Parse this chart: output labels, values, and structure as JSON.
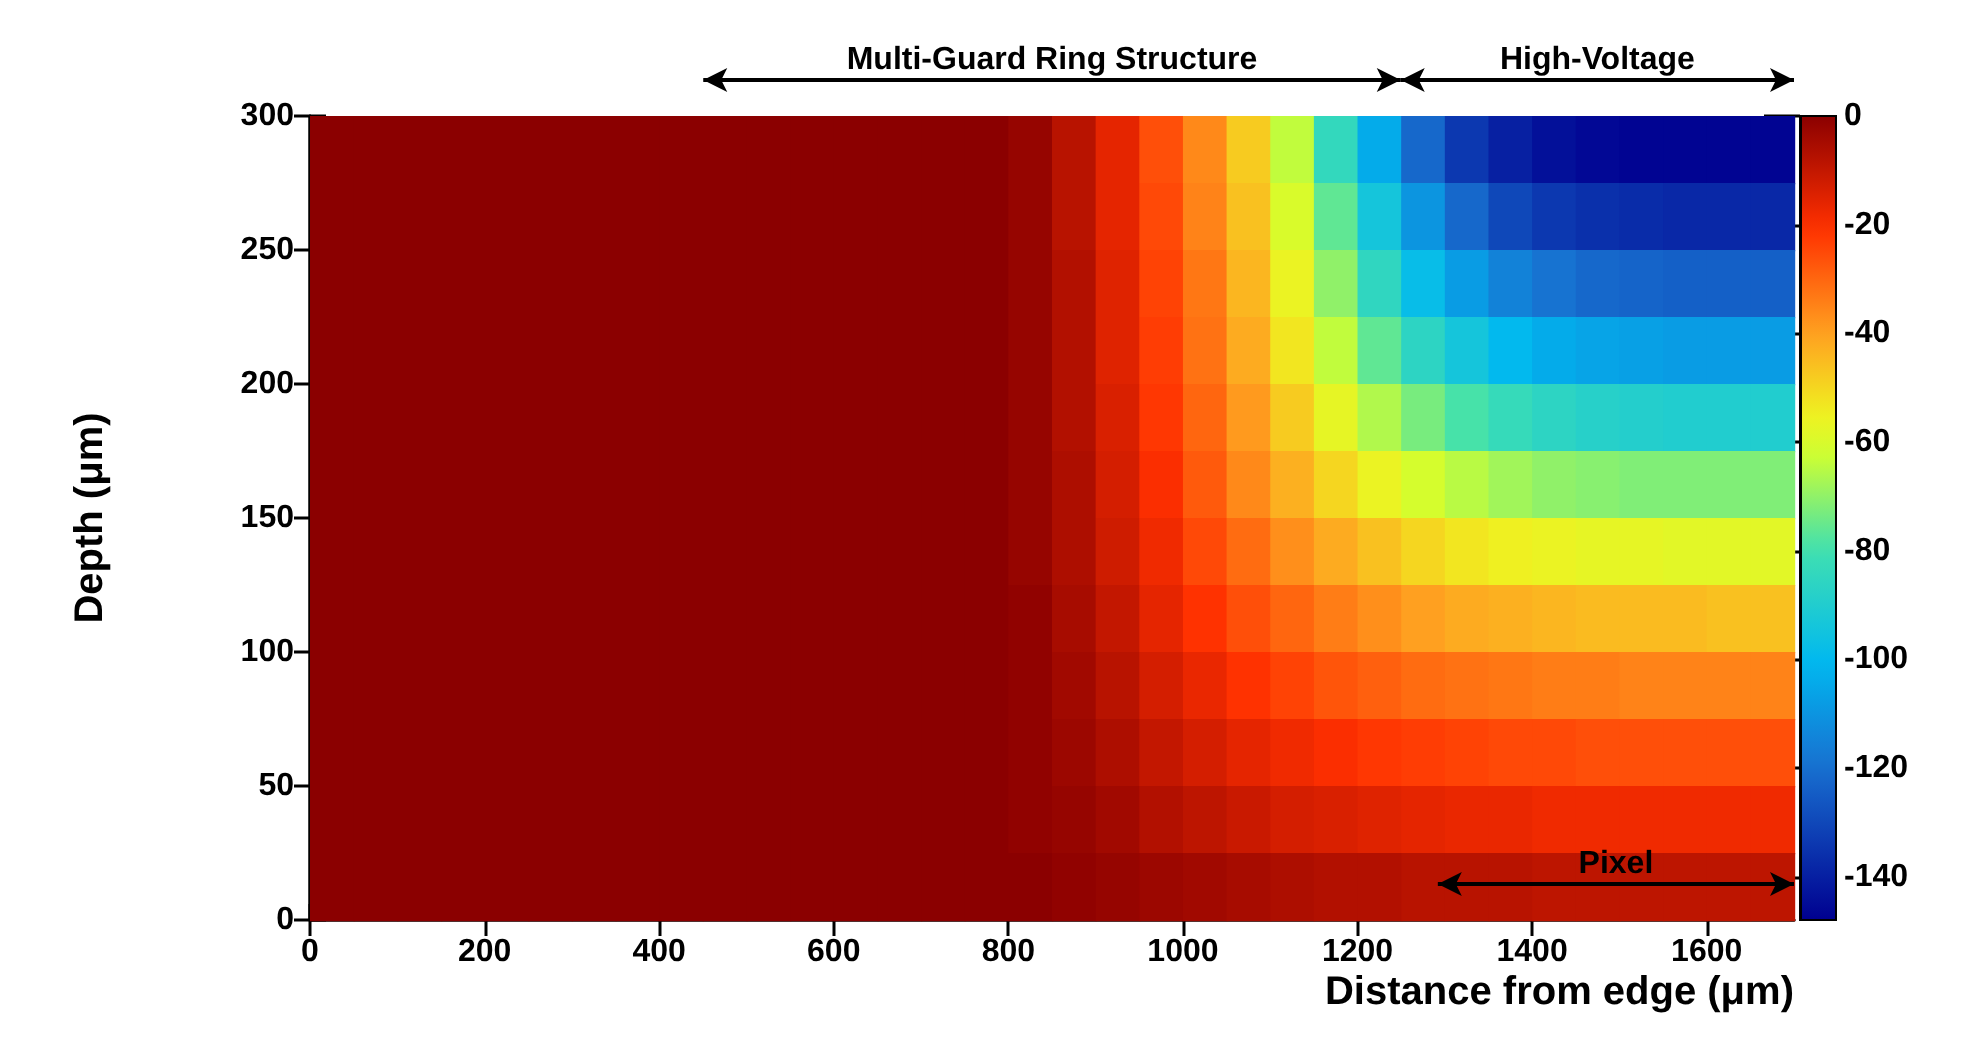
{
  "chart_data": {
    "type": "heatmap",
    "xlabel": "Distance from edge (μm)",
    "ylabel": "Depth (μm)",
    "xlim": [
      0,
      1700
    ],
    "xticks": [
      0,
      200,
      400,
      600,
      800,
      1000,
      1200,
      1400,
      1600
    ],
    "ylim": [
      0,
      300
    ],
    "yticks": [
      0,
      50,
      100,
      150,
      200,
      250,
      300
    ],
    "clim": [
      -148,
      0
    ],
    "cticks": [
      0,
      -20,
      -40,
      -60,
      -80,
      -100,
      -120,
      -140
    ],
    "x": [
      25,
      75,
      125,
      175,
      225,
      275,
      325,
      375,
      425,
      475,
      525,
      575,
      625,
      675,
      725,
      775,
      825,
      875,
      925,
      975,
      1025,
      1075,
      1125,
      1175,
      1225,
      1275,
      1325,
      1375,
      1425,
      1475,
      1525,
      1575,
      1625,
      1675
    ],
    "y": [
      287.5,
      262.5,
      237.5,
      212.5,
      187.5,
      162.5,
      137.5,
      112.5,
      87.5,
      62.5,
      37.5,
      12.5
    ],
    "cells": [
      [
        0,
        0,
        0,
        0,
        0,
        0,
        0,
        0,
        0,
        0,
        0,
        0,
        0,
        0,
        0,
        0,
        -2,
        -8,
        -16,
        -26,
        -36,
        -48,
        -64,
        -84,
        -104,
        -122,
        -134,
        -140,
        -144,
        -146,
        -147,
        -147,
        -147,
        -147
      ],
      [
        0,
        0,
        0,
        0,
        0,
        0,
        0,
        0,
        0,
        0,
        0,
        0,
        0,
        0,
        0,
        0,
        -2,
        -8,
        -16,
        -25,
        -35,
        -46,
        -60,
        -76,
        -94,
        -110,
        -122,
        -130,
        -134,
        -136,
        -137,
        -138,
        -138,
        -138
      ],
      [
        0,
        0,
        0,
        0,
        0,
        0,
        0,
        0,
        0,
        0,
        0,
        0,
        0,
        0,
        0,
        0,
        -2,
        -7,
        -15,
        -24,
        -33,
        -44,
        -56,
        -70,
        -85,
        -98,
        -108,
        -115,
        -119,
        -122,
        -123,
        -124,
        -124,
        -124
      ],
      [
        0,
        0,
        0,
        0,
        0,
        0,
        0,
        0,
        0,
        0,
        0,
        0,
        0,
        0,
        0,
        0,
        -2,
        -7,
        -15,
        -23,
        -32,
        -42,
        -53,
        -64,
        -76,
        -86,
        -94,
        -100,
        -104,
        -106,
        -107,
        -108,
        -108,
        -108
      ],
      [
        0,
        0,
        0,
        0,
        0,
        0,
        0,
        0,
        0,
        0,
        0,
        0,
        0,
        0,
        0,
        0,
        -2,
        -7,
        -14,
        -22,
        -30,
        -39,
        -48,
        -57,
        -66,
        -73,
        -79,
        -83,
        -86,
        -88,
        -89,
        -90,
        -90,
        -90
      ],
      [
        0,
        0,
        0,
        0,
        0,
        0,
        0,
        0,
        0,
        0,
        0,
        0,
        0,
        0,
        0,
        0,
        -2,
        -6,
        -13,
        -20,
        -28,
        -36,
        -43,
        -50,
        -56,
        -61,
        -65,
        -68,
        -70,
        -71,
        -72,
        -72,
        -72,
        -72
      ],
      [
        0,
        0,
        0,
        0,
        0,
        0,
        0,
        0,
        0,
        0,
        0,
        0,
        0,
        0,
        0,
        0,
        -2,
        -6,
        -12,
        -18,
        -25,
        -31,
        -37,
        -42,
        -46,
        -50,
        -53,
        -55,
        -56,
        -57,
        -57,
        -58,
        -58,
        -58
      ],
      [
        0,
        0,
        0,
        0,
        0,
        0,
        0,
        0,
        0,
        0,
        0,
        0,
        0,
        0,
        0,
        0,
        -1,
        -5,
        -10,
        -16,
        -21,
        -26,
        -30,
        -34,
        -37,
        -40,
        -42,
        -43,
        -44,
        -45,
        -45,
        -45,
        -46,
        -46
      ],
      [
        0,
        0,
        0,
        0,
        0,
        0,
        0,
        0,
        0,
        0,
        0,
        0,
        0,
        0,
        0,
        0,
        -1,
        -4,
        -8,
        -13,
        -17,
        -21,
        -24,
        -27,
        -29,
        -31,
        -32,
        -33,
        -34,
        -34,
        -35,
        -35,
        -35,
        -35
      ],
      [
        0,
        0,
        0,
        0,
        0,
        0,
        0,
        0,
        0,
        0,
        0,
        0,
        0,
        0,
        0,
        0,
        -1,
        -3,
        -6,
        -10,
        -13,
        -16,
        -18,
        -20,
        -22,
        -23,
        -24,
        -25,
        -25,
        -26,
        -26,
        -26,
        -26,
        -26
      ],
      [
        0,
        0,
        0,
        0,
        0,
        0,
        0,
        0,
        0,
        0,
        0,
        0,
        0,
        0,
        0,
        0,
        -1,
        -2,
        -4,
        -7,
        -9,
        -11,
        -13,
        -14,
        -15,
        -16,
        -17,
        -17,
        -18,
        -18,
        -18,
        -18,
        -18,
        -18
      ],
      [
        0,
        0,
        0,
        0,
        0,
        0,
        0,
        0,
        0,
        0,
        0,
        0,
        0,
        0,
        0,
        0,
        0,
        -1,
        -2,
        -3,
        -4,
        -5,
        -6,
        -7,
        -7,
        -8,
        -8,
        -8,
        -9,
        -9,
        -9,
        -9,
        -9,
        -9
      ]
    ],
    "annotations": [
      "Multi-Guard Ring Structure",
      "High-Voltage",
      "Pixel"
    ]
  }
}
